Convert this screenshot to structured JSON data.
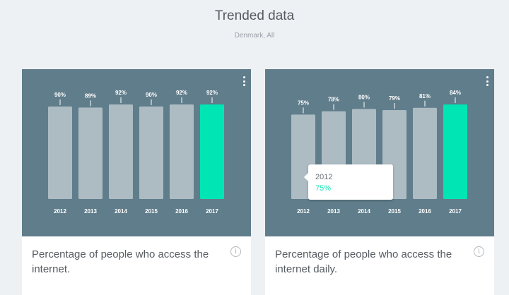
{
  "page": {
    "title": "Trended data",
    "subtitle": "Denmark, All"
  },
  "colors": {
    "bar_default": "#adbcc3",
    "bar_highlight": "#00e5b4",
    "chart_background": "#607d8b",
    "tooltip_value": "#1de9b6"
  },
  "cards": [
    {
      "title": "Percentage of people who access the internet.",
      "menu_icon": "more-vertical-icon",
      "info_icon": "info-icon",
      "info_glyph": "i"
    },
    {
      "title": "Percentage of people who access the internet daily.",
      "menu_icon": "more-vertical-icon",
      "info_icon": "info-icon",
      "info_glyph": "i",
      "tooltip": {
        "year": "2012",
        "value": "75%"
      }
    }
  ],
  "chart_data": [
    {
      "type": "bar",
      "categories": [
        "2012",
        "2013",
        "2014",
        "2015",
        "2016",
        "2017"
      ],
      "values": [
        90,
        89,
        92,
        90,
        92,
        92
      ],
      "labels": [
        "90%",
        "89%",
        "92%",
        "90%",
        "92%",
        "92%"
      ],
      "highlight": "2017",
      "title": "",
      "xlabel": "",
      "ylabel": "",
      "ylim": [
        0,
        92
      ]
    },
    {
      "type": "bar",
      "categories": [
        "2012",
        "2013",
        "2014",
        "2015",
        "2016",
        "2017"
      ],
      "values": [
        75,
        78,
        80,
        79,
        81,
        84
      ],
      "labels": [
        "75%",
        "78%",
        "80%",
        "79%",
        "81%",
        "84%"
      ],
      "highlight": "2017",
      "title": "",
      "xlabel": "",
      "ylabel": "",
      "ylim": [
        0,
        84
      ]
    }
  ]
}
